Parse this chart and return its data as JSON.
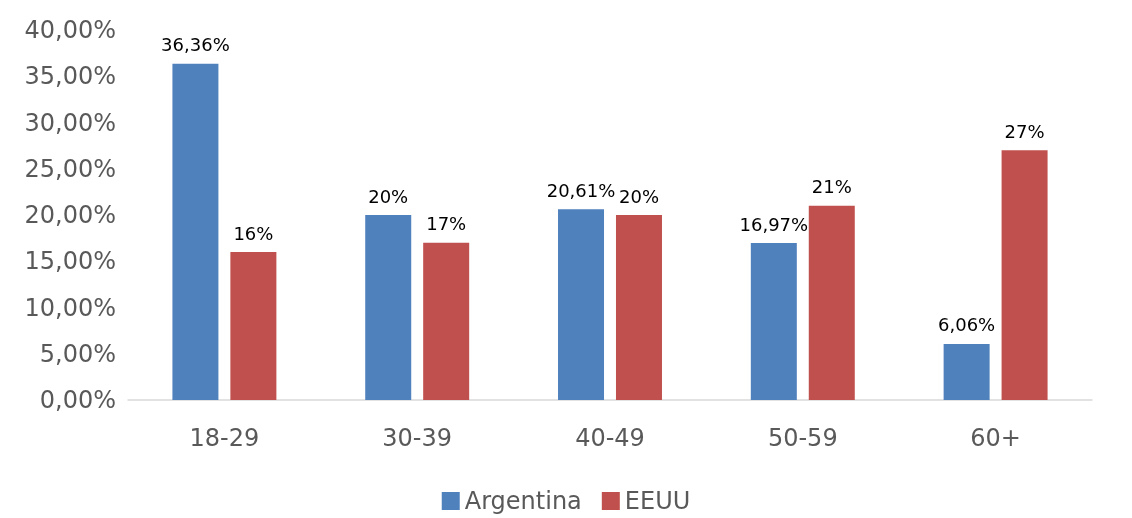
{
  "chart_data": {
    "type": "bar",
    "categories": [
      "18-29",
      "30-39",
      "40-49",
      "50-59",
      "60+"
    ],
    "series": [
      {
        "name": "Argentina",
        "color": "#4f81bd",
        "values": [
          36.36,
          20,
          20.61,
          16.97,
          6.06
        ],
        "value_labels": [
          "36,36%",
          "20%",
          "20,61%",
          "16,97%",
          "6,06%"
        ]
      },
      {
        "name": "EEUU",
        "color": "#c0504d",
        "values": [
          16,
          17,
          20,
          21,
          27
        ],
        "value_labels": [
          "16%",
          "17%",
          "20%",
          "21%",
          "27%"
        ]
      }
    ],
    "ylim": [
      0,
      40
    ],
    "yticks": [
      {
        "value": 0,
        "label": "0,00%"
      },
      {
        "value": 5,
        "label": "5,00%"
      },
      {
        "value": 10,
        "label": "10,00%"
      },
      {
        "value": 15,
        "label": "15,00%"
      },
      {
        "value": 20,
        "label": "20,00%"
      },
      {
        "value": 25,
        "label": "25,00%"
      },
      {
        "value": 30,
        "label": "30,00%"
      },
      {
        "value": 35,
        "label": "35,00%"
      },
      {
        "value": 40,
        "label": "40,00%"
      }
    ],
    "grid": false,
    "legend": "bottom"
  }
}
